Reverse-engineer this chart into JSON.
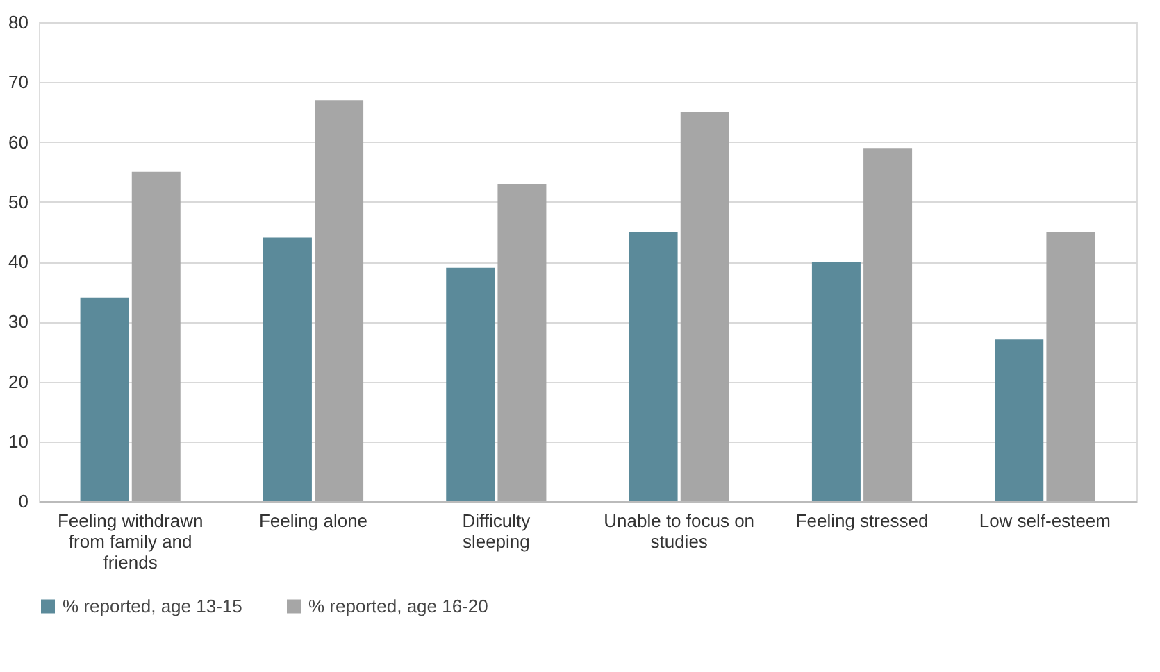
{
  "chart_data": {
    "type": "bar",
    "categories": [
      "Feeling withdrawn from family and friends",
      "Feeling alone",
      "Difficulty sleeping",
      "Unable to focus on studies",
      "Feeling stressed",
      "Low self-esteem"
    ],
    "series": [
      {
        "name": "% reported, age 13-15",
        "color": "#5b8a9a",
        "values": [
          34,
          44,
          39,
          45,
          40,
          27
        ]
      },
      {
        "name": "% reported, age 16-20",
        "color": "#a6a6a6",
        "values": [
          55,
          67,
          53,
          65,
          59,
          45
        ]
      }
    ],
    "ylim": [
      0,
      80
    ],
    "yticks": [
      0,
      10,
      20,
      30,
      40,
      50,
      60,
      70,
      80
    ],
    "grid": "y",
    "legend": "bottom"
  }
}
